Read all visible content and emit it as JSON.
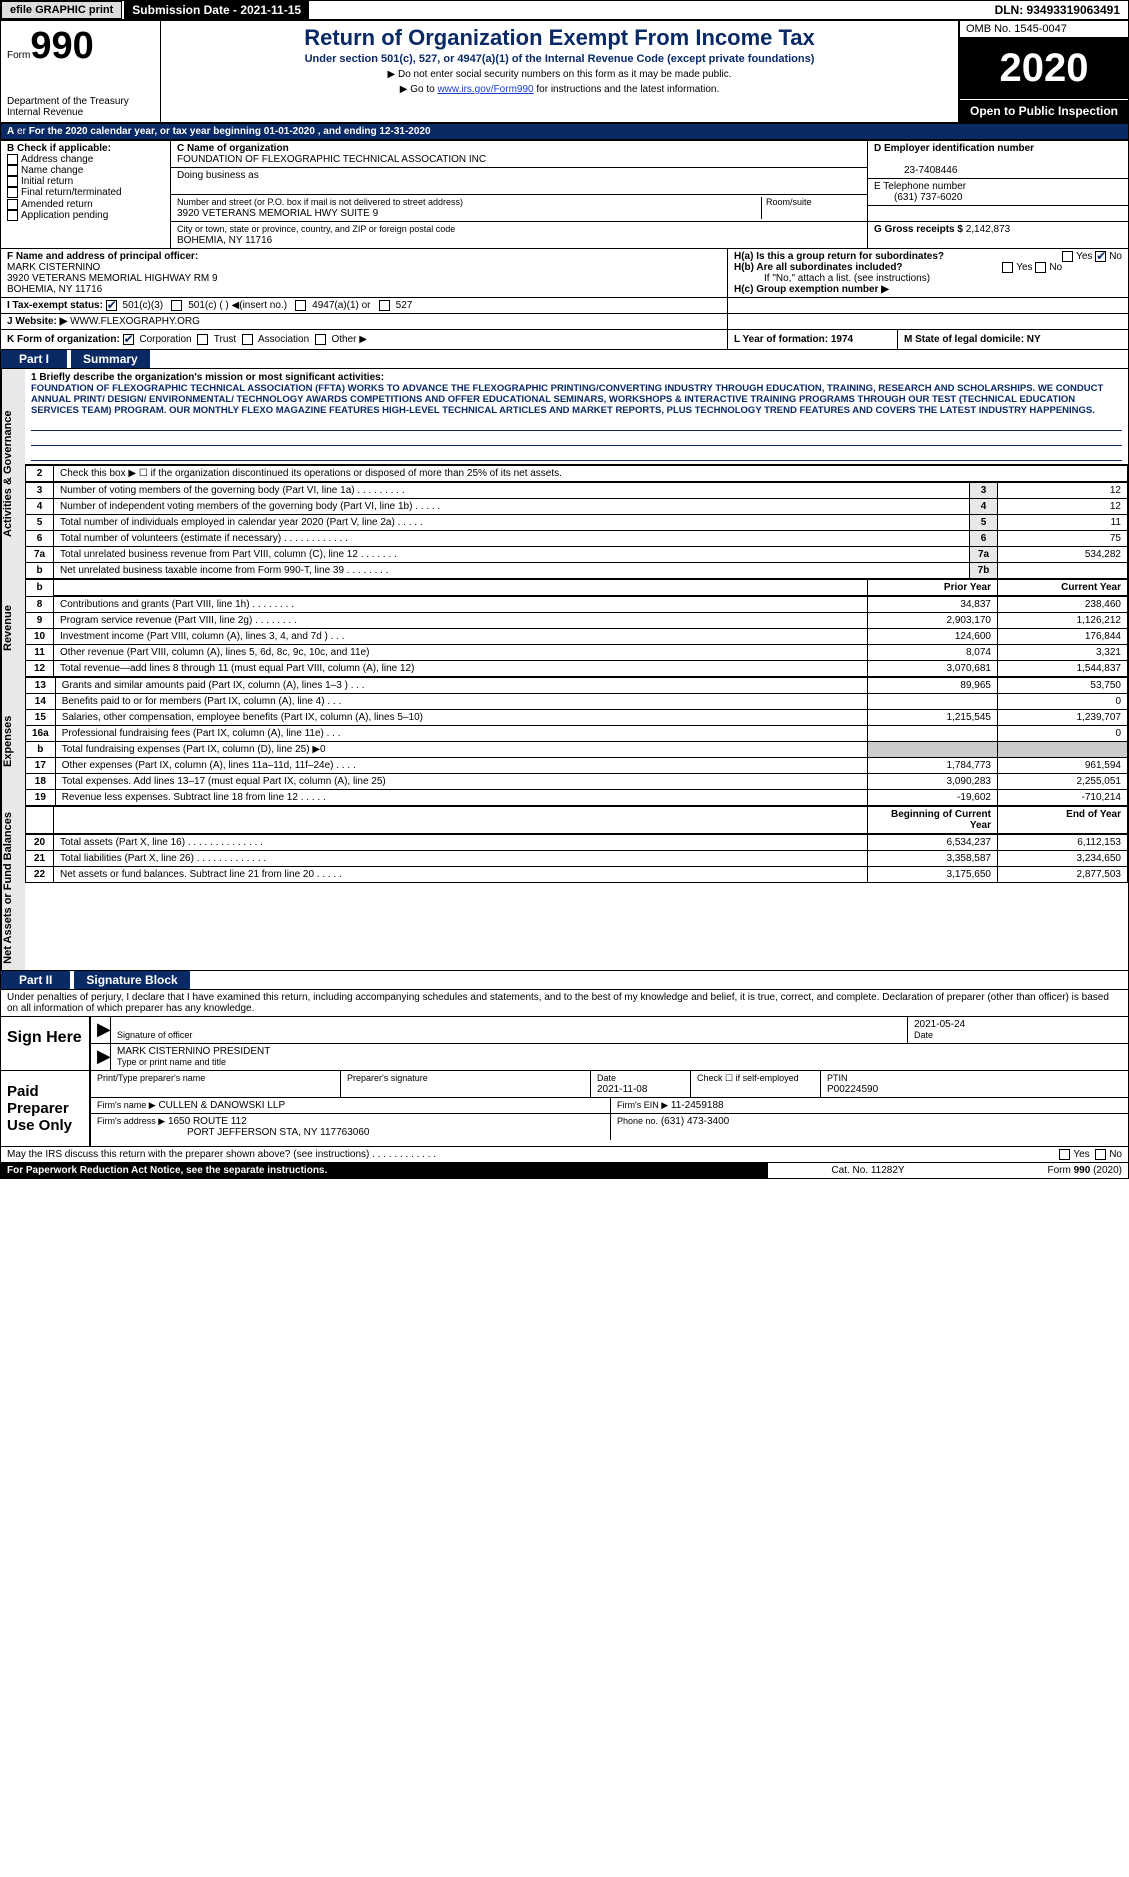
{
  "colors": {
    "primary": "#0a2a66",
    "black": "#000000",
    "white": "#ffffff",
    "shade": "#e8e8e8",
    "gray": "#cccccc",
    "link": "#1a3fcd"
  },
  "topbar": {
    "efile": "efile GRAPHIC print",
    "submission": "Submission Date - 2021-11-15",
    "dln": "DLN: 93493319063491"
  },
  "header": {
    "form_label": "Form",
    "form_number": "990",
    "department": "Department of the Treasury",
    "agency": "Internal Revenue",
    "title": "Return of Organization Exempt From Income Tax",
    "subtitle": "Under section 501(c), 527, or 4947(a)(1) of the Internal Revenue Code (except private foundations)",
    "note_ssn": "▶ Do not enter social security numbers on this form as it may be made public.",
    "note_web_pre": "▶ Go to ",
    "note_web_link": "www.irs.gov/Form990",
    "note_web_post": " for instructions and the latest information.",
    "omb": "OMB No. 1545-0047",
    "year": "2020",
    "open_public": "Open to Public Inspection"
  },
  "lineA": {
    "text": "For the 2020 calendar year, or tax year beginning 01-01-2020   , and ending 12-31-2020"
  },
  "boxB": {
    "label": "B Check if applicable:",
    "options": [
      "Address change",
      "Name change",
      "Initial return",
      "Final return/terminated",
      "Amended return",
      "Application pending"
    ],
    "checked": []
  },
  "boxC": {
    "name_label": "C Name of organization",
    "name": "FOUNDATION OF FLEXOGRAPHIC TECHNICAL ASSOCATION INC",
    "dba_label": "Doing business as",
    "dba": "",
    "street_label": "Number and street (or P.O. box if mail is not delivered to street address)",
    "room_label": "Room/suite",
    "street": "3920 VETERANS MEMORIAL HWY SUITE 9",
    "city_label": "City or town, state or province, country, and ZIP or foreign postal code",
    "city": "BOHEMIA, NY  11716"
  },
  "boxD": {
    "label": "D Employer identification number",
    "value": "23-7408446"
  },
  "boxE": {
    "label": "E Telephone number",
    "value": "(631) 737-6020"
  },
  "boxG": {
    "label": "G Gross receipts $",
    "value": "2,142,873"
  },
  "boxF": {
    "label": "F  Name and address of principal officer:",
    "name": "MARK CISTERNINO",
    "street": "3920 VETERANS MEMORIAL HIGHWAY RM 9",
    "city": "BOHEMIA, NY  11716"
  },
  "boxH": {
    "ha_label": "H(a)  Is this a group return for subordinates?",
    "ha_yes": false,
    "ha_no": true,
    "hb_label": "H(b)  Are all subordinates included?",
    "hb_note": "If \"No,\" attach a list. (see instructions)",
    "hc_label": "H(c)  Group exemption number ▶"
  },
  "boxI": {
    "label": "I   Tax-exempt status:",
    "c3": true,
    "c_blank_label": "501(c) (  ) ◀(insert no.)",
    "a1_label": "4947(a)(1) or",
    "a527_label": "527"
  },
  "boxJ": {
    "label": "J  Website: ▶",
    "value": "WWW.FLEXOGRAPHY.ORG"
  },
  "boxK": {
    "label": "K Form of organization:",
    "corp": true,
    "options": [
      "Corporation",
      "Trust",
      "Association",
      "Other ▶"
    ]
  },
  "boxL": {
    "label": "L Year of formation: 1974"
  },
  "boxM": {
    "label": "M State of legal domicile: NY"
  },
  "partI": {
    "label_part": "Part I",
    "label_title": "Summary",
    "vlabel_ag": "Activities & Governance",
    "vlabel_rev": "Revenue",
    "vlabel_exp": "Expenses",
    "vlabel_net": "Net Assets or Fund Balances",
    "mission_label": "1  Briefly describe the organization's mission or most significant activities:",
    "mission": "FOUNDATION OF FLEXOGRAPHIC TECHNICAL ASSOCIATION (FFTA) WORKS TO ADVANCE THE FLEXOGRAPHIC PRINTING/CONVERTING INDUSTRY THROUGH EDUCATION, TRAINING, RESEARCH AND SCHOLARSHIPS. WE CONDUCT ANNUAL PRINT/ DESIGN/ ENVIRONMENTAL/ TECHNOLOGY AWARDS COMPETITIONS AND OFFER EDUCATIONAL SEMINARS, WORKSHOPS & INTERACTIVE TRAINING PROGRAMS THROUGH OUR TEST (TECHNICAL EDUCATION SERVICES TEAM) PROGRAM. OUR MONTHLY FLEXO MAGAZINE FEATURES HIGH-LEVEL TECHNICAL ARTICLES AND MARKET REPORTS, PLUS TECHNOLOGY TREND FEATURES AND COVERS THE LATEST INDUSTRY HAPPENINGS.",
    "line2": "Check this box ▶ ☐  if the organization discontinued its operations or disposed of more than 25% of its net assets.",
    "rows_ag": [
      {
        "n": "3",
        "desc": "Number of voting members of the governing body (Part VI, line 1a)  .  .  .  .  .  .  .  .  .",
        "box": "3",
        "v": "12"
      },
      {
        "n": "4",
        "desc": "Number of independent voting members of the governing body (Part VI, line 1b)   .  .  .  .  .",
        "box": "4",
        "v": "12"
      },
      {
        "n": "5",
        "desc": "Total number of individuals employed in calendar year 2020 (Part V, line 2a)  .  .  .  .  .",
        "box": "5",
        "v": "11"
      },
      {
        "n": "6",
        "desc": "Total number of volunteers (estimate if necessary)  .  .  .  .  .  .  .  .  .  .  .  .",
        "box": "6",
        "v": "75"
      },
      {
        "n": "7a",
        "desc": "Total unrelated business revenue from Part VIII, column (C), line 12  .  .  .  .  .  .  .",
        "box": "7a",
        "v": "534,282"
      },
      {
        "n": "b",
        "desc": "Net unrelated business taxable income from Form 990-T, line 39  .  .  .  .  .  .  .  .",
        "box": "7b",
        "v": ""
      }
    ],
    "col_hdr_prior": "Prior Year",
    "col_hdr_current": "Current Year",
    "rows_rev": [
      {
        "n": "8",
        "desc": "Contributions and grants (Part VIII, line 1h)  .  .  .  .  .  .  .  .",
        "p": "34,837",
        "c": "238,460"
      },
      {
        "n": "9",
        "desc": "Program service revenue (Part VIII, line 2g)  .  .  .  .  .  .  .  .",
        "p": "2,903,170",
        "c": "1,126,212"
      },
      {
        "n": "10",
        "desc": "Investment income (Part VIII, column (A), lines 3, 4, and 7d )  .  .  .",
        "p": "124,600",
        "c": "176,844"
      },
      {
        "n": "11",
        "desc": "Other revenue (Part VIII, column (A), lines 5, 6d, 8c, 9c, 10c, and 11e)",
        "p": "8,074",
        "c": "3,321"
      },
      {
        "n": "12",
        "desc": "Total revenue—add lines 8 through 11 (must equal Part VIII, column (A), line 12)",
        "p": "3,070,681",
        "c": "1,544,837"
      }
    ],
    "rows_exp": [
      {
        "n": "13",
        "desc": "Grants and similar amounts paid (Part IX, column (A), lines 1–3 )  .  .  .",
        "p": "89,965",
        "c": "53,750"
      },
      {
        "n": "14",
        "desc": "Benefits paid to or for members (Part IX, column (A), line 4)  .  .  .",
        "p": "",
        "c": "0"
      },
      {
        "n": "15",
        "desc": "Salaries, other compensation, employee benefits (Part IX, column (A), lines 5–10)",
        "p": "1,215,545",
        "c": "1,239,707"
      },
      {
        "n": "16a",
        "desc": "Professional fundraising fees (Part IX, column (A), line 11e)  .  .  .",
        "p": "",
        "c": "0"
      },
      {
        "n": "b",
        "desc": "Total fundraising expenses (Part IX, column (D), line 25) ▶0",
        "p": "SHADE",
        "c": "SHADE"
      },
      {
        "n": "17",
        "desc": "Other expenses (Part IX, column (A), lines 11a–11d, 11f–24e)  .  .  .  .",
        "p": "1,784,773",
        "c": "961,594"
      },
      {
        "n": "18",
        "desc": "Total expenses. Add lines 13–17 (must equal Part IX, column (A), line 25)",
        "p": "3,090,283",
        "c": "2,255,051"
      },
      {
        "n": "19",
        "desc": "Revenue less expenses. Subtract line 18 from line 12  .  .  .  .  .",
        "p": "-19,602",
        "c": "-710,214"
      }
    ],
    "col_hdr_begin": "Beginning of Current Year",
    "col_hdr_end": "End of Year",
    "rows_net": [
      {
        "n": "20",
        "desc": "Total assets (Part X, line 16)  .  .  .  .  .  .  .  .  .  .  .  .  .  .",
        "p": "6,534,237",
        "c": "6,112,153"
      },
      {
        "n": "21",
        "desc": "Total liabilities (Part X, line 26)  .  .  .  .  .  .  .  .  .  .  .  .  .",
        "p": "3,358,587",
        "c": "3,234,650"
      },
      {
        "n": "22",
        "desc": "Net assets or fund balances. Subtract line 21 from line 20  .  .  .  .  .",
        "p": "3,175,650",
        "c": "2,877,503"
      }
    ]
  },
  "partII": {
    "label_part": "Part II",
    "label_title": "Signature Block",
    "declaration": "Under penalties of perjury, I declare that I have examined this return, including accompanying schedules and statements, and to the best of my knowledge and belief, it is true, correct, and complete. Declaration of preparer (other than officer) is based on all information of which preparer has any knowledge.",
    "sign_here": "Sign Here",
    "sig_officer_label": "Signature of officer",
    "sig_date_label": "Date",
    "sig_date": "2021-05-24",
    "name_title": "MARK CISTERNINO  PRESIDENT",
    "name_title_label": "Type or print name and title",
    "paid_label": "Paid Preparer Use Only",
    "prep_name_label": "Print/Type preparer's name",
    "prep_sig_label": "Preparer's signature",
    "prep_date_label": "Date",
    "prep_date": "2021-11-08",
    "self_emp_label": "Check ☐  if self-employed",
    "ptin_label": "PTIN",
    "ptin": "P00224590",
    "firm_name_label": "Firm's name    ▶",
    "firm_name": "CULLEN & DANOWSKI LLP",
    "firm_ein_label": "Firm's EIN ▶",
    "firm_ein": "11-2459188",
    "firm_addr_label": "Firm's address ▶",
    "firm_addr1": "1650 ROUTE 112",
    "firm_addr2": "PORT JEFFERSON STA, NY  117763060",
    "phone_label": "Phone no.",
    "phone": "(631) 473-3400",
    "discuss": "May the IRS discuss this return with the preparer shown above? (see instructions)  .  .  .  .  .  .  .  .  .  .  .  .",
    "discuss_yes": false,
    "discuss_no": false
  },
  "footer": {
    "paperwork": "For Paperwork Reduction Act Notice, see the separate instructions.",
    "cat": "Cat. No. 11282Y",
    "formnum": "Form 990 (2020)"
  }
}
